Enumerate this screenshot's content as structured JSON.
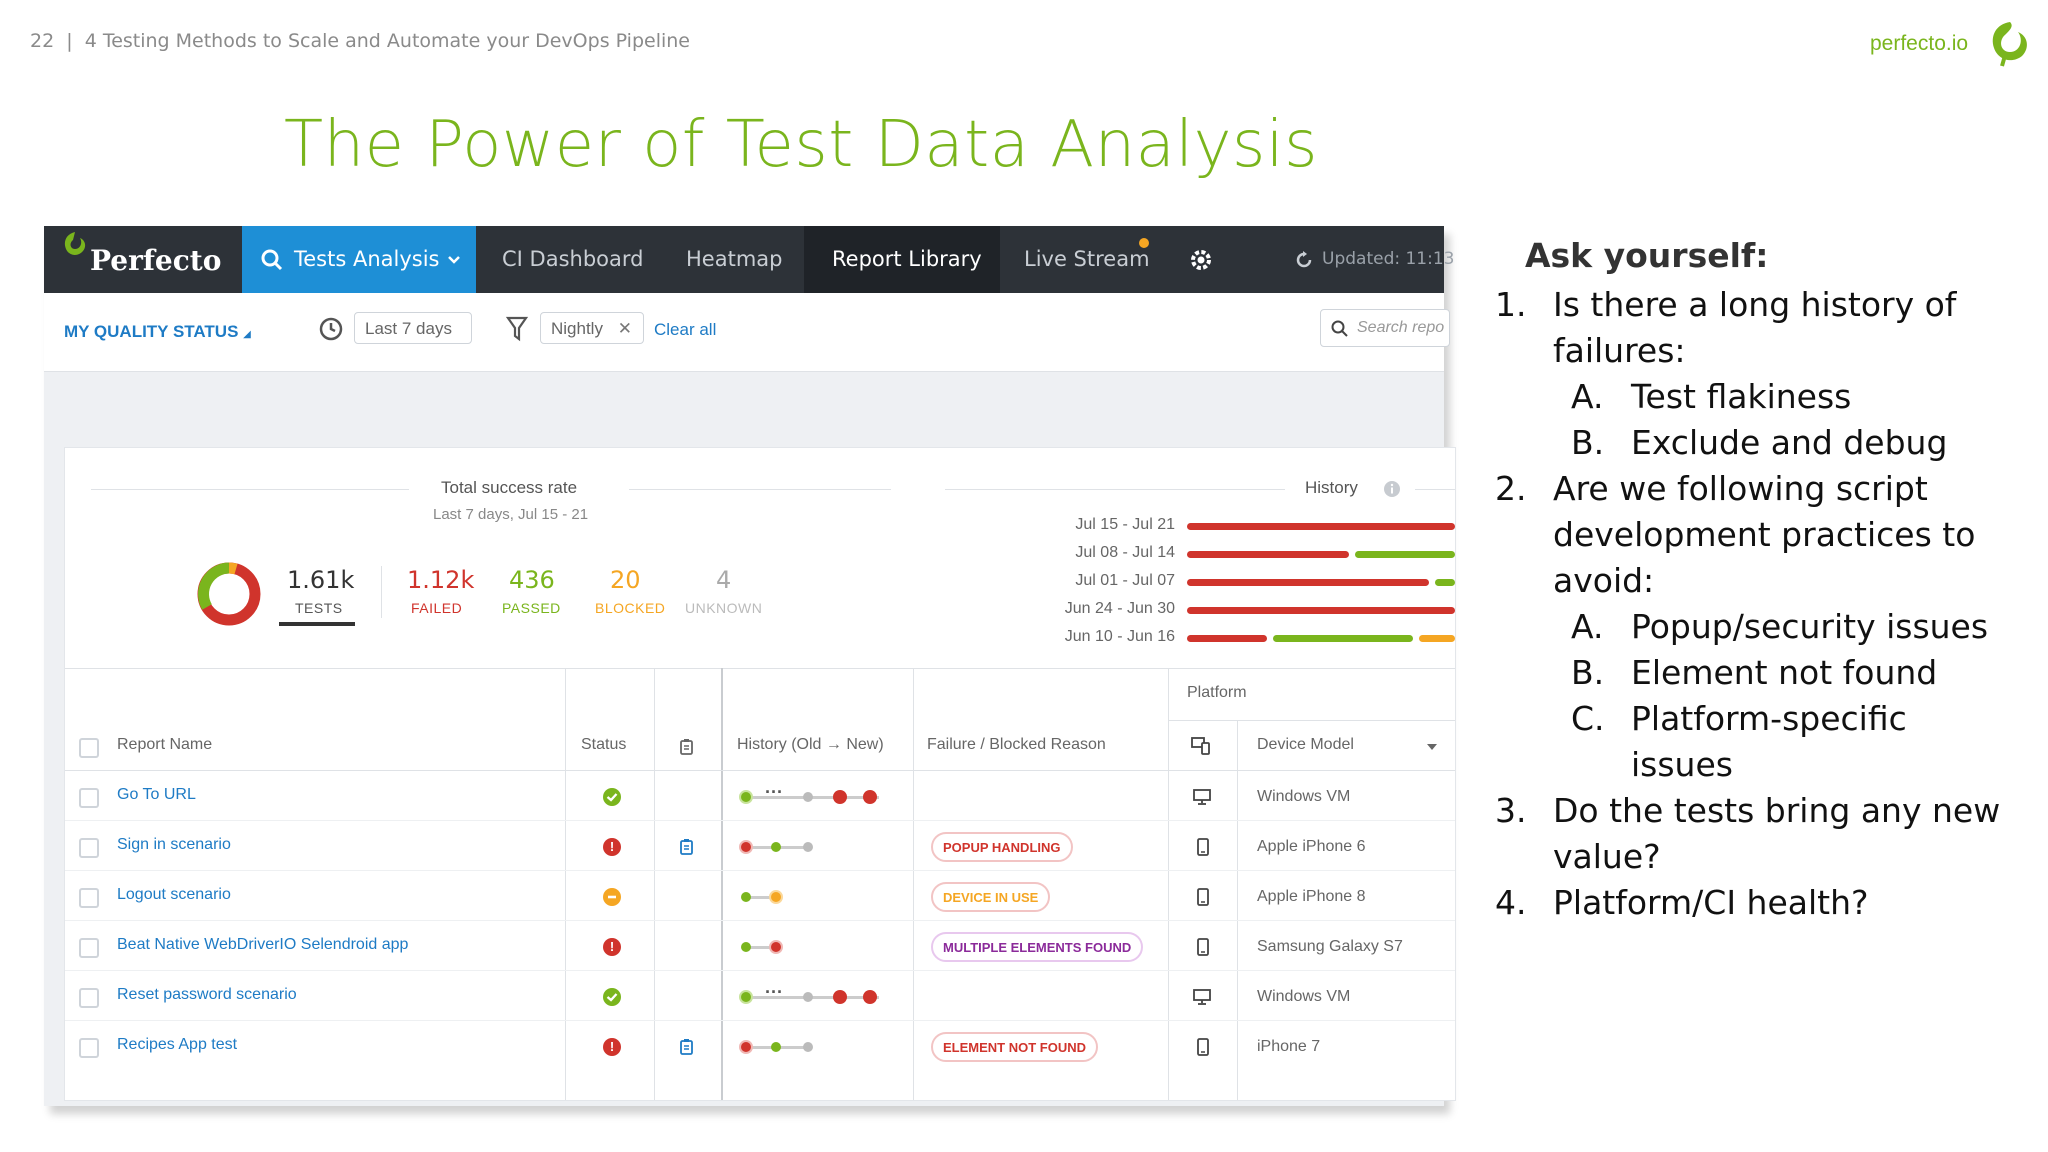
{
  "header": {
    "page_number": "22",
    "separator": "|",
    "doc_title": "4 Testing Methods to Scale and Automate your DevOps Pipeline",
    "brand_url": "perfecto.io"
  },
  "slide_title": "The Power of Test Data Analysis",
  "app": {
    "logo_text": "Perfecto",
    "nav": {
      "tests_analysis": "Tests Analysis",
      "ci_dashboard": "CI Dashboard",
      "heatmap": "Heatmap",
      "report_library": "Report Library",
      "live_stream": "Live Stream",
      "updated": "Updated: 11:13"
    },
    "filters": {
      "my_quality_status": "MY QUALITY STATUS",
      "range": "Last 7 days",
      "tag": "Nightly",
      "clear_all": "Clear all",
      "search_placeholder": "Search repo"
    },
    "summary": {
      "title": "Total success rate",
      "subtitle": "Last 7 days, Jul 15 - 21",
      "tests_value": "1.61k",
      "tests_label": "TESTS",
      "failed_value": "1.12k",
      "failed_label": "FAILED",
      "passed_value": "436",
      "passed_label": "PASSED",
      "blocked_value": "20",
      "blocked_label": "BLOCKED",
      "unknown_value": "4",
      "unknown_label": "UNKNOWN",
      "history_title": "History"
    },
    "history_weeks": [
      "Jul 15 - Jul 21",
      "Jul 08 - Jul 14",
      "Jul 01 - Jul 07",
      "Jun 24 - Jun 30",
      "Jun 10 - Jun 16"
    ],
    "table": {
      "headers": {
        "report_name": "Report Name",
        "status": "Status",
        "history": "History (Old → New)",
        "failure": "Failure / Blocked Reason",
        "platform": "Platform",
        "device_model": "Device Model"
      },
      "rows": [
        {
          "name": "Go To URL",
          "status": "passed",
          "reason": "",
          "device": "Windows VM"
        },
        {
          "name": "Sign in scenario",
          "status": "failed",
          "reason": "POPUP HANDLING",
          "device": "Apple iPhone 6"
        },
        {
          "name": "Logout scenario",
          "status": "blocked",
          "reason": "DEVICE IN USE",
          "device": "Apple iPhone 8"
        },
        {
          "name": "Beat Native WebDriverIO Selendroid app",
          "status": "failed",
          "reason": "MULTIPLE ELEMENTS FOUND",
          "device": "Samsung Galaxy S7"
        },
        {
          "name": "Reset password scenario",
          "status": "passed",
          "reason": "",
          "device": "Windows VM"
        },
        {
          "name": "Recipes App test",
          "status": "failed",
          "reason": "ELEMENT NOT FOUND",
          "device": "iPhone 7"
        }
      ]
    }
  },
  "questions": {
    "heading": "Ask yourself:",
    "q1": "Is there a long history of failures:",
    "q1a": "Test flakiness",
    "q1b": "Exclude and debug",
    "q2": "Are we following script development practices to avoid:",
    "q2a": "Popup/security issues",
    "q2b": "Element not found",
    "q2c": "Platform-specific issues",
    "q3": "Do the tests bring any new value?",
    "q4": "Platform/CI health?"
  },
  "colors": {
    "accent_green": "#7ab51d",
    "failed_red": "#d0342c",
    "passed_green": "#7ab51d",
    "blocked_orange": "#f5a623",
    "nav_blue": "#1e8fd6"
  }
}
